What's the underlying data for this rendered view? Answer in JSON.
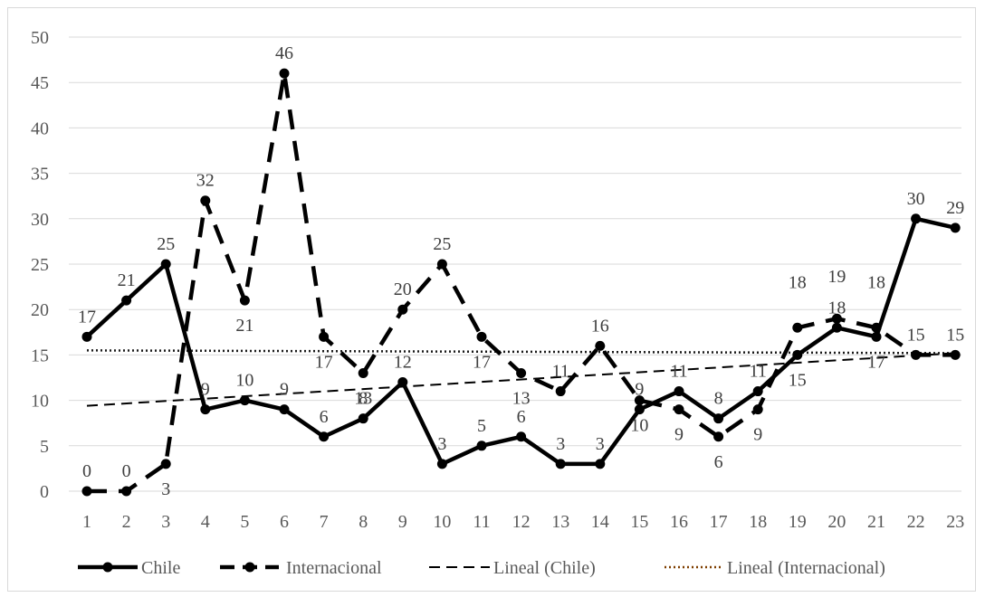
{
  "chart_data": {
    "type": "line",
    "categories": [
      "1",
      "2",
      "3",
      "4",
      "5",
      "6",
      "7",
      "8",
      "9",
      "10",
      "11",
      "12",
      "13",
      "14",
      "15",
      "16",
      "17",
      "18",
      "19",
      "20",
      "21",
      "22",
      "23"
    ],
    "ylim": [
      0,
      50
    ],
    "yticks": [
      "0",
      "5",
      "10",
      "15",
      "20",
      "25",
      "30",
      "35",
      "40",
      "45",
      "50"
    ],
    "grid": true,
    "legend_position": "bottom",
    "series": [
      {
        "name": "Chile",
        "style": "solid",
        "color": "#000000",
        "values": [
          17,
          21,
          25,
          9,
          10,
          9,
          6,
          8,
          12,
          3,
          5,
          6,
          3,
          3,
          9,
          11,
          8,
          11,
          15,
          18,
          17,
          30,
          29
        ],
        "labels": [
          "17",
          "21",
          "25",
          "9",
          "10",
          "9",
          "6",
          "8",
          "12",
          "3",
          "5",
          "6",
          "3",
          "3",
          "9",
          "11",
          "8",
          "11",
          "15",
          "18",
          "17",
          "30",
          "29"
        ]
      },
      {
        "name": "Internacional",
        "style": "dashed",
        "color": "#000000",
        "values": [
          0,
          0,
          3,
          32,
          21,
          46,
          17,
          13,
          20,
          25,
          17,
          13,
          11,
          16,
          10,
          9,
          6,
          9,
          18,
          19,
          18,
          15,
          15
        ],
        "labels": [
          "0",
          "0",
          "3",
          "32",
          "21",
          "46",
          "17",
          "13",
          "20",
          "25",
          "17",
          "13",
          "11",
          "16",
          "10",
          "9",
          "6",
          "9",
          "18",
          "19",
          "18",
          "15",
          "15"
        ]
      },
      {
        "name": "Lineal (Chile)",
        "style": "trend-dashed",
        "color": "#000000",
        "trend": [
          9.4,
          15.2
        ]
      },
      {
        "name": "Lineal (Internacional)",
        "style": "trend-dotted",
        "color": "#7f3f00",
        "trend": [
          15.5,
          15.2
        ]
      }
    ]
  }
}
